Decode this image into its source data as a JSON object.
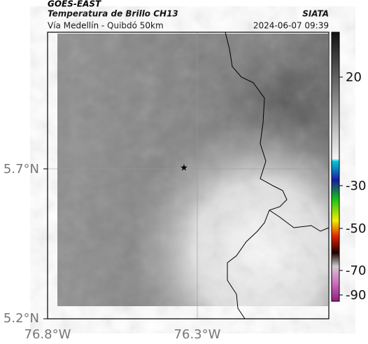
{
  "header": {
    "title": "GOES-EAST",
    "subtitle": "Temperatura de Brillo CH13",
    "source": "SIATA",
    "route": "Vía Medellín - Quibdó 50km",
    "timestamp": "2024-06-07 09:39"
  },
  "map": {
    "lat_labels": [
      "5.7°N",
      "5.2°N"
    ],
    "lon_labels": [
      "76.8°W",
      "76.3°W"
    ]
  },
  "colorbar": {
    "ticks": [
      20,
      -30,
      -50,
      -70,
      -90
    ]
  }
}
